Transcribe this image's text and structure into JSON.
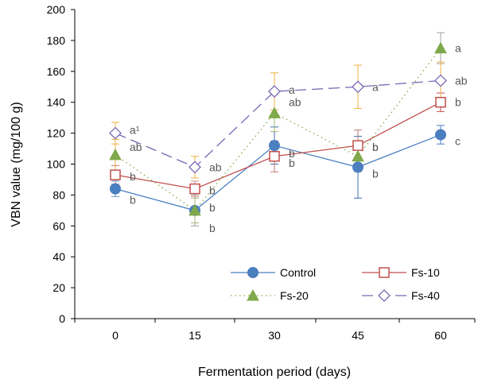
{
  "chart_data": {
    "type": "line",
    "xlabel": "Fermentation period (days)",
    "ylabel": "VBN value (mg/100 g)",
    "x": [
      0,
      15,
      30,
      45,
      60
    ],
    "ylim": [
      0,
      200
    ],
    "yticks": [
      0,
      20,
      40,
      60,
      80,
      100,
      120,
      140,
      160,
      180,
      200
    ],
    "grid": false,
    "legend_position": "bottom-right",
    "series": [
      {
        "name": "Control",
        "values": [
          84,
          70,
          112,
          98,
          119
        ],
        "errors": [
          5,
          10,
          12,
          20,
          6
        ],
        "letters": [
          "b",
          "b",
          "b",
          "b",
          "c"
        ],
        "color": "#4a7fc0",
        "marker": "circle",
        "line": "solid"
      },
      {
        "name": "Fs-10",
        "values": [
          93,
          84,
          105,
          112,
          140
        ],
        "errors": [
          6,
          5,
          10,
          10,
          6
        ],
        "letters": [
          "b",
          "b",
          "b",
          "b",
          "b"
        ],
        "color": "#c0504d",
        "marker": "square",
        "line": "solid"
      },
      {
        "name": "Fs-20",
        "values": [
          106,
          70,
          133,
          105,
          175
        ],
        "errors": [
          10,
          8,
          12,
          10,
          10
        ],
        "letters": [
          "ab",
          "b",
          "ab",
          "b",
          "a"
        ],
        "color": "#7fa94a",
        "marker": "triangle",
        "line": "dotted"
      },
      {
        "name": "Fs-40",
        "values": [
          120,
          98,
          147,
          150,
          154
        ],
        "errors": [
          7,
          7,
          12,
          14,
          12
        ],
        "letters": [
          "a¹",
          "ab",
          "a",
          "a",
          "ab"
        ],
        "color": "#7b68b3",
        "marker": "diamond",
        "line": "dashed"
      }
    ]
  }
}
